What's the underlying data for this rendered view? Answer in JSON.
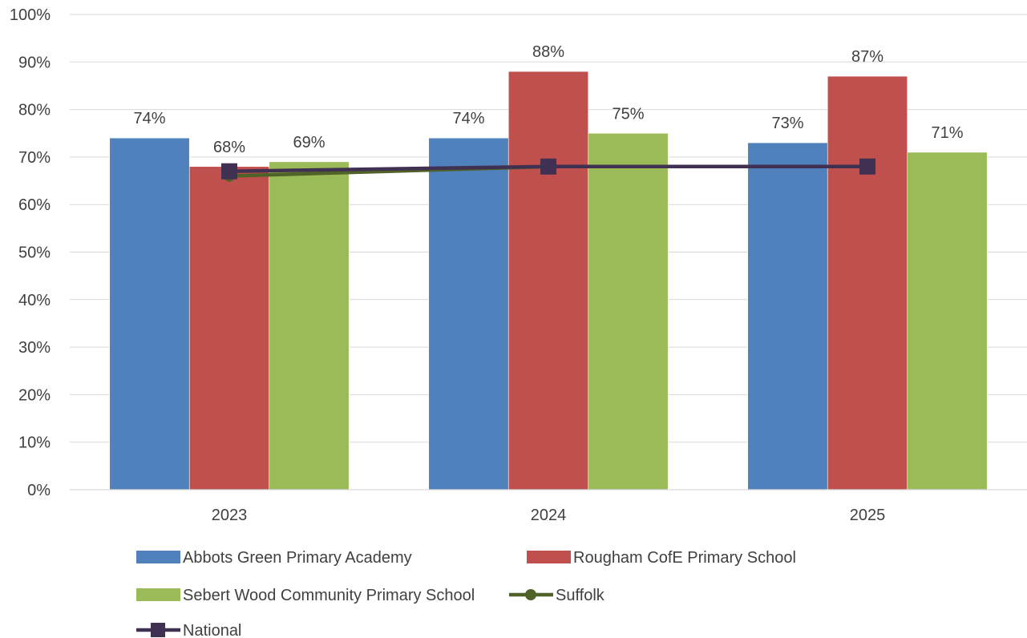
{
  "chart_data": {
    "type": "bar",
    "categories": [
      "2023",
      "2024",
      "2025"
    ],
    "ylim": [
      0,
      1
    ],
    "yticks": [
      "0%",
      "10%",
      "20%",
      "30%",
      "40%",
      "50%",
      "60%",
      "70%",
      "80%",
      "90%",
      "100%"
    ],
    "grid": true,
    "legend_position": "bottom",
    "series": [
      {
        "name": "Abbots Green Primary Academy",
        "kind": "bar",
        "color": "#4F81BD",
        "values": [
          0.74,
          0.74,
          0.73
        ],
        "labels": [
          "74%",
          "74%",
          "73%"
        ]
      },
      {
        "name": "Rougham CofE Primary School",
        "kind": "bar",
        "color": "#C0504D",
        "values": [
          0.68,
          0.88,
          0.87
        ],
        "labels": [
          "68%",
          "88%",
          "87%"
        ]
      },
      {
        "name": "Sebert Wood Community Primary School",
        "kind": "bar",
        "color": "#9BBB59",
        "values": [
          0.69,
          0.75,
          0.71
        ],
        "labels": [
          "69%",
          "75%",
          "71%"
        ]
      },
      {
        "name": "Suffolk",
        "kind": "line",
        "marker": "circle",
        "color": "#4F6228",
        "values": [
          0.66,
          0.68,
          0.68
        ]
      },
      {
        "name": "National",
        "kind": "line",
        "marker": "square",
        "color": "#403152",
        "values": [
          0.67,
          0.68,
          0.68
        ]
      }
    ]
  }
}
